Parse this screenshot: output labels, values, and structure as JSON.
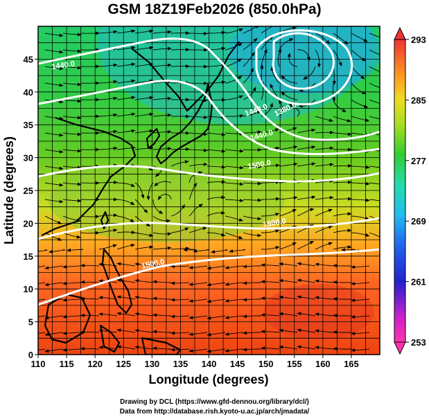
{
  "title": "GSM 18Z19Feb2026 (850.0hPa)",
  "xaxis": {
    "label": "Longitude (degrees)",
    "range": [
      110,
      170
    ],
    "ticks": [
      "110",
      "115",
      "120",
      "125",
      "130",
      "135",
      "140",
      "145",
      "150",
      "155",
      "160",
      "165"
    ]
  },
  "yaxis": {
    "label": "Latitude  (degrees)",
    "range": [
      0,
      50
    ],
    "ticks": [
      "0",
      "5",
      "10",
      "15",
      "20",
      "25",
      "30",
      "35",
      "40",
      "45"
    ]
  },
  "colorbar": {
    "range": [
      253,
      293
    ],
    "labels": [
      "293",
      "285",
      "277",
      "269",
      "261",
      "253"
    ]
  },
  "contour_labels": [
    "1440.0",
    "1440.0",
    "1380.0",
    "1440.0",
    "1500.0",
    "1500.0",
    "1500.0"
  ],
  "credits": {
    "line1": "Drawing by DCL (https://www.gfd-dennou.org/library/dcl/)",
    "line2": "Data from http://database.rish.kyoto-u.ac.jp/arch/jmadata/"
  }
}
